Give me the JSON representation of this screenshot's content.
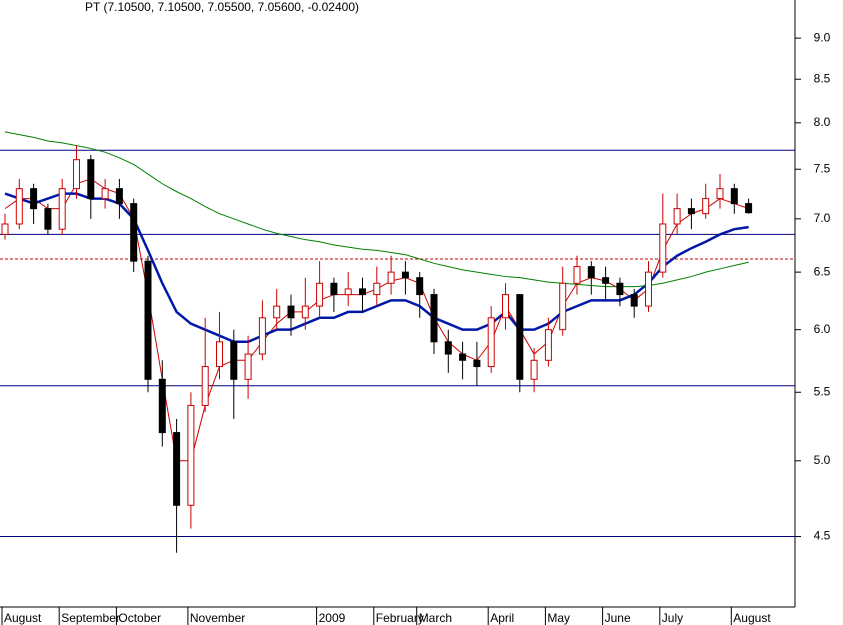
{
  "chart_data": {
    "type": "candlestick",
    "title": "PT (7.10500, 7.10500, 7.05500, 7.05600, -0.02400)",
    "categories": [
      "August",
      null,
      null,
      null,
      "September",
      null,
      null,
      null,
      "October",
      null,
      null,
      null,
      null,
      "November",
      null,
      null,
      null,
      null,
      null,
      null,
      null,
      null,
      "2009",
      null,
      null,
      null,
      "February",
      null,
      null,
      "March",
      null,
      null,
      null,
      null,
      "April",
      null,
      null,
      null,
      "May",
      null,
      null,
      null,
      "June",
      null,
      null,
      null,
      "July",
      null,
      null,
      null,
      null,
      "August",
      null
    ],
    "open": [
      6.85,
      6.95,
      7.3,
      7.1,
      6.9,
      7.3,
      7.6,
      7.2,
      7.3,
      7.15,
      6.6,
      5.6,
      5.2,
      4.7,
      5.4,
      5.7,
      5.9,
      5.6,
      5.8,
      6.1,
      6.2,
      6.1,
      6.2,
      6.4,
      6.3,
      6.35,
      6.3,
      6.4,
      6.5,
      6.45,
      6.3,
      5.9,
      5.8,
      5.75,
      5.7,
      6.1,
      6.3,
      5.6,
      5.75,
      6.0,
      6.4,
      6.55,
      6.45,
      6.4,
      6.3,
      6.2,
      6.5,
      6.95,
      7.1,
      7.05,
      7.2,
      7.3,
      7.15
    ],
    "high": [
      7.05,
      7.4,
      7.35,
      7.15,
      7.4,
      7.75,
      7.65,
      7.4,
      7.4,
      7.2,
      6.65,
      5.75,
      5.3,
      5.5,
      6.1,
      6.15,
      6.0,
      5.95,
      6.25,
      6.35,
      6.3,
      6.45,
      6.6,
      6.45,
      6.5,
      6.45,
      6.55,
      6.65,
      6.6,
      6.5,
      6.35,
      6.0,
      5.9,
      5.9,
      6.2,
      6.4,
      6.3,
      5.85,
      6.1,
      6.55,
      6.65,
      6.6,
      6.55,
      6.45,
      6.35,
      6.6,
      7.25,
      7.25,
      7.2,
      7.35,
      7.45,
      7.35,
      7.2
    ],
    "low": [
      6.8,
      6.9,
      6.95,
      6.85,
      6.85,
      7.2,
      7.0,
      7.1,
      7.0,
      6.5,
      5.5,
      5.1,
      4.4,
      4.55,
      5.35,
      5.6,
      5.3,
      5.45,
      5.75,
      6.0,
      5.95,
      6.0,
      6.1,
      6.15,
      6.2,
      6.15,
      6.2,
      6.3,
      6.3,
      6.1,
      5.8,
      5.65,
      5.6,
      5.55,
      5.65,
      6.0,
      5.5,
      5.5,
      5.7,
      5.95,
      6.3,
      6.3,
      6.25,
      6.2,
      6.1,
      6.15,
      6.45,
      6.85,
      6.9,
      7.0,
      7.1,
      7.05,
      7.05
    ],
    "close": [
      6.95,
      7.3,
      7.1,
      6.9,
      7.3,
      7.6,
      7.2,
      7.3,
      7.15,
      6.6,
      5.6,
      5.2,
      4.7,
      5.4,
      5.7,
      5.9,
      5.6,
      5.8,
      6.1,
      6.2,
      6.1,
      6.2,
      6.4,
      6.3,
      6.35,
      6.3,
      6.4,
      6.5,
      6.45,
      6.3,
      5.9,
      5.8,
      5.75,
      5.7,
      6.1,
      6.3,
      5.6,
      5.75,
      6.0,
      6.4,
      6.55,
      6.45,
      6.4,
      6.3,
      6.2,
      6.5,
      6.95,
      7.1,
      7.05,
      7.2,
      7.3,
      7.15,
      7.06
    ],
    "up_color": "#cc0000",
    "down_color": "#000000",
    "series": [
      {
        "color": "#cc0000",
        "width": 1,
        "values": [
          7.1,
          7.2,
          7.2,
          7.1,
          7.1,
          7.35,
          7.4,
          7.3,
          7.25,
          7.0,
          6.3,
          5.6,
          5.0,
          5.0,
          5.4,
          5.7,
          5.75,
          5.75,
          5.9,
          6.05,
          6.15,
          6.15,
          6.25,
          6.3,
          6.3,
          6.3,
          6.35,
          6.42,
          6.45,
          6.4,
          6.1,
          5.9,
          5.8,
          5.75,
          5.9,
          6.2,
          6.0,
          5.8,
          5.9,
          6.2,
          6.4,
          6.45,
          6.42,
          6.35,
          6.25,
          6.35,
          6.7,
          6.95,
          7.05,
          7.1,
          7.2,
          7.15,
          7.1
        ]
      },
      {
        "color": "#0018a8",
        "width": 2.5,
        "values": [
          7.25,
          7.2,
          7.15,
          7.2,
          7.25,
          7.25,
          7.2,
          7.2,
          7.15,
          7.0,
          6.7,
          6.4,
          6.15,
          6.05,
          6.0,
          5.95,
          5.9,
          5.9,
          5.95,
          6.0,
          6.0,
          6.05,
          6.1,
          6.1,
          6.15,
          6.15,
          6.2,
          6.25,
          6.25,
          6.2,
          6.1,
          6.05,
          6.0,
          6.0,
          6.05,
          6.15,
          6.0,
          6.0,
          6.05,
          6.15,
          6.2,
          6.25,
          6.25,
          6.25,
          6.3,
          6.4,
          6.55,
          6.65,
          6.72,
          6.78,
          6.85,
          6.9,
          6.92
        ]
      },
      {
        "color": "#008000",
        "width": 1,
        "values": [
          7.9,
          7.87,
          7.84,
          7.8,
          7.78,
          7.75,
          7.72,
          7.68,
          7.62,
          7.55,
          7.45,
          7.35,
          7.27,
          7.2,
          7.12,
          7.05,
          7.0,
          6.95,
          6.9,
          6.86,
          6.83,
          6.8,
          6.78,
          6.75,
          6.73,
          6.71,
          6.7,
          6.68,
          6.66,
          6.62,
          6.58,
          6.55,
          6.52,
          6.5,
          6.48,
          6.46,
          6.45,
          6.43,
          6.41,
          6.4,
          6.39,
          6.38,
          6.37,
          6.37,
          6.37,
          6.38,
          6.4,
          6.43,
          6.46,
          6.5,
          6.53,
          6.56,
          6.59
        ]
      }
    ],
    "hlines": [
      {
        "value": 7.7,
        "color": "#000080",
        "dashed": false
      },
      {
        "value": 6.85,
        "color": "#000080",
        "dashed": false
      },
      {
        "value": 6.62,
        "color": "#cc0000",
        "dashed": true
      },
      {
        "value": 5.55,
        "color": "#000080",
        "dashed": false
      },
      {
        "value": 4.5,
        "color": "#000080",
        "dashed": false
      }
    ],
    "log_scale": true,
    "ylim": [
      4.08,
      9.49
    ],
    "yticks": [
      4.5,
      {
        "value": 5,
        "label": "5.0"
      },
      5.5,
      {
        "value": 6,
        "label": "6.0"
      },
      6.5,
      {
        "value": 7,
        "label": "7.0"
      },
      7.5,
      {
        "value": 8,
        "label": "8.0"
      },
      8.5,
      {
        "value": 9,
        "label": "9.0"
      }
    ]
  }
}
